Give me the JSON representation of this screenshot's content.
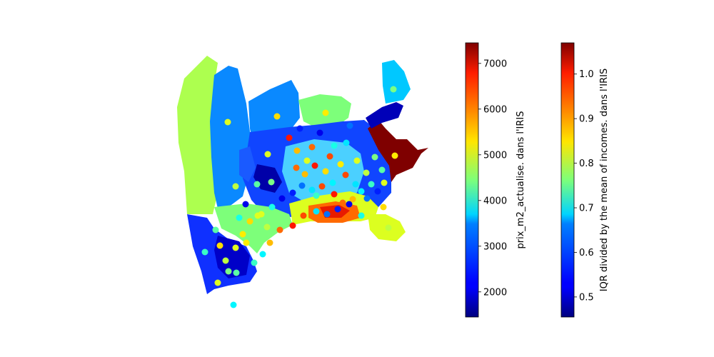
{
  "chart_data": {
    "type": "choropleth-map-with-points",
    "title": "",
    "colorbars": [
      {
        "id": "price",
        "label": "prix_m2_actualise. dans l'IRIS",
        "colormap": "jet",
        "range": [
          1450,
          7450
        ],
        "ticks": [
          2000,
          3000,
          4000,
          5000,
          6000,
          7000
        ],
        "tick_labels": [
          "2000",
          "3000",
          "4000",
          "5000",
          "6000",
          "7000"
        ]
      },
      {
        "id": "iqr",
        "label": "IQR divided by the mean of incomes. dans l'IRIS",
        "colormap": "jet",
        "range": [
          0.455,
          1.07
        ],
        "ticks": [
          0.5,
          0.6,
          0.7,
          0.8,
          0.9,
          1.0
        ],
        "tick_labels": [
          "0.5",
          "0.6",
          "0.7",
          "0.8",
          "0.9",
          "1.0"
        ]
      }
    ],
    "regions_colored_by": "price",
    "points_colored_by": "iqr",
    "approx_region_values": [
      4500,
      3100,
      3100,
      4200,
      3700,
      2500,
      7400,
      2300,
      3900,
      2800,
      1800,
      4400,
      5500,
      6300
    ],
    "approx_point_values": [
      0.82,
      0.86,
      0.85,
      0.82,
      0.8,
      0.76,
      0.74,
      0.72,
      0.68,
      0.88,
      0.93,
      0.98,
      0.95,
      0.67,
      0.6,
      0.55,
      0.52,
      0.7
    ]
  }
}
